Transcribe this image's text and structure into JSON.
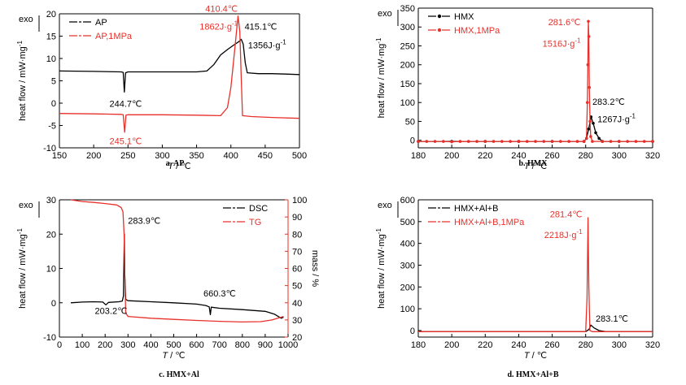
{
  "colors": {
    "black": "#000000",
    "red": "#e8302a"
  },
  "chart_data": [
    {
      "id": "a",
      "type": "line",
      "caption": "a.  AP",
      "exo_label": "exo",
      "xlabel": "T / ℃",
      "ylabel": "heat flow / mW·mg",
      "ylabel_sup": "-1",
      "xlim": [
        150,
        500
      ],
      "ylim": [
        -10,
        20
      ],
      "xticks": [
        150,
        200,
        250,
        300,
        350,
        400,
        450,
        500
      ],
      "yticks": [
        -10,
        -5,
        0,
        5,
        10,
        15,
        20
      ],
      "legend_position": "top-left",
      "series": [
        {
          "name": "AP",
          "color": "#000000",
          "marker": "",
          "points": [
            [
              150,
              7.2
            ],
            [
              200,
              7.1
            ],
            [
              240,
              7.0
            ],
            [
              243,
              6.9
            ],
            [
              244.7,
              2.5
            ],
            [
              246.5,
              6.8
            ],
            [
              250,
              7.0
            ],
            [
              300,
              7.0
            ],
            [
              350,
              7.0
            ],
            [
              365,
              7.2
            ],
            [
              375,
              8.6
            ],
            [
              385,
              10.8
            ],
            [
              395,
              12.0
            ],
            [
              405,
              13.1
            ],
            [
              412,
              13.8
            ],
            [
              415.1,
              14.3
            ],
            [
              418,
              13.2
            ],
            [
              421,
              9.0
            ],
            [
              424,
              6.8
            ],
            [
              440,
              6.6
            ],
            [
              460,
              6.6
            ],
            [
              480,
              6.5
            ],
            [
              500,
              6.4
            ]
          ]
        },
        {
          "name": "AP,1MPa",
          "color": "#e8302a",
          "marker": "",
          "points": [
            [
              150,
              -2.3
            ],
            [
              200,
              -2.4
            ],
            [
              240,
              -2.5
            ],
            [
              243,
              -2.6
            ],
            [
              245.1,
              -6.5
            ],
            [
              247,
              -2.7
            ],
            [
              250,
              -2.6
            ],
            [
              300,
              -2.6
            ],
            [
              350,
              -2.7
            ],
            [
              385,
              -2.8
            ],
            [
              395,
              -1.0
            ],
            [
              400,
              3.5
            ],
            [
              405,
              11.0
            ],
            [
              410.4,
              19.5
            ],
            [
              413,
              16.0
            ],
            [
              415,
              6.0
            ],
            [
              417,
              -2.8
            ],
            [
              430,
              -3.0
            ],
            [
              460,
              -3.2
            ],
            [
              500,
              -3.4
            ]
          ]
        }
      ],
      "annotations": [
        {
          "text": "410.4℃",
          "x": 410,
          "y": 20.5,
          "color": "#e8302a",
          "anchor": "end"
        },
        {
          "text": "1862J·g",
          "sup": "-1",
          "x": 410,
          "y": 16.5,
          "color": "#e8302a",
          "anchor": "end"
        },
        {
          "text": "415.1℃",
          "x": 420,
          "y": 16.5,
          "color": "#000000",
          "anchor": "start"
        },
        {
          "text": "1356J·g",
          "sup": "-1",
          "x": 425,
          "y": 12.3,
          "color": "#000000",
          "anchor": "start"
        },
        {
          "text": "244.7℃",
          "x": 223,
          "y": -0.8,
          "color": "#000000",
          "anchor": "start"
        },
        {
          "text": "245.1℃",
          "x": 223,
          "y": -9.2,
          "color": "#e8302a",
          "anchor": "start"
        }
      ]
    },
    {
      "id": "b",
      "type": "line",
      "caption": "b.  HMX",
      "exo_label": "exo",
      "xlabel": "T / ℃",
      "ylabel": "heat flow / mW·mg",
      "ylabel_sup": "-1",
      "xlim": [
        180,
        320
      ],
      "ylim": [
        -20,
        350
      ],
      "xticks": [
        180,
        200,
        220,
        240,
        260,
        280,
        300,
        320
      ],
      "yticks": [
        0,
        50,
        100,
        150,
        200,
        250,
        300,
        350
      ],
      "legend_position": "top-left",
      "series": [
        {
          "name": "HMX",
          "color": "#000000",
          "marker": "dot",
          "points": [
            [
              180,
              -3
            ],
            [
              200,
              -3
            ],
            [
              220,
              -3
            ],
            [
              240,
              -3
            ],
            [
              260,
              -3
            ],
            [
              279,
              -3
            ],
            [
              280.5,
              5
            ],
            [
              281.8,
              30
            ],
            [
              283.2,
              62
            ],
            [
              284.5,
              45
            ],
            [
              286,
              20
            ],
            [
              288,
              5
            ],
            [
              290,
              -3
            ],
            [
              300,
              -3
            ],
            [
              320,
              -3
            ]
          ]
        },
        {
          "name": "HMX,1MPa",
          "color": "#e8302a",
          "marker": "dot",
          "points": [
            [
              180,
              -3
            ],
            [
              185,
              -3
            ],
            [
              190,
              -3
            ],
            [
              195,
              -3
            ],
            [
              200,
              -4
            ],
            [
              205,
              -3
            ],
            [
              210,
              -3
            ],
            [
              215,
              -3
            ],
            [
              220,
              -3
            ],
            [
              225,
              -3
            ],
            [
              230,
              -3
            ],
            [
              235,
              -3
            ],
            [
              240,
              -3
            ],
            [
              245,
              -3
            ],
            [
              250,
              -3
            ],
            [
              255,
              -3
            ],
            [
              260,
              -3
            ],
            [
              265,
              -3
            ],
            [
              270,
              -3
            ],
            [
              275,
              -3
            ],
            [
              279,
              -3
            ],
            [
              280.5,
              5
            ],
            [
              281,
              100
            ],
            [
              281.3,
              200
            ],
            [
              281.6,
              315
            ],
            [
              281.9,
              275
            ],
            [
              282.2,
              140
            ],
            [
              282.6,
              50
            ],
            [
              283,
              10
            ],
            [
              284,
              -3
            ],
            [
              290,
              -3
            ],
            [
              295,
              -3
            ],
            [
              300,
              -3
            ],
            [
              305,
              -3
            ],
            [
              310,
              -3
            ],
            [
              315,
              -3
            ],
            [
              320,
              -3
            ]
          ]
        }
      ],
      "annotations": [
        {
          "text": "281.6℃",
          "x": 277,
          "y": 305,
          "color": "#e8302a",
          "anchor": "end"
        },
        {
          "text": "1516J·g",
          "sup": "-1",
          "x": 277,
          "y": 248,
          "color": "#e8302a",
          "anchor": "end"
        },
        {
          "text": "283.2℃",
          "x": 284,
          "y": 94,
          "color": "#000000",
          "anchor": "start"
        },
        {
          "text": "1267J·g",
          "sup": "-1",
          "x": 287,
          "y": 48,
          "color": "#000000",
          "anchor": "start"
        }
      ]
    },
    {
      "id": "c",
      "type": "line",
      "caption": "c.  HMX+Al",
      "exo_label": "exo",
      "xlabel": "T / ℃",
      "ylabel": "heat flow / mW·mg",
      "ylabel_sup": "-1",
      "y2label": "mass / %",
      "xlim": [
        0,
        1000
      ],
      "ylim": [
        -10,
        30
      ],
      "y2lim": [
        20,
        100
      ],
      "xticks": [
        0,
        100,
        200,
        300,
        400,
        500,
        600,
        700,
        800,
        900,
        1000
      ],
      "yticks": [
        -10,
        0,
        10,
        20,
        30
      ],
      "y2ticks": [
        20,
        30,
        40,
        50,
        60,
        70,
        80,
        90,
        100
      ],
      "legend_position": "top-right",
      "series": [
        {
          "name": "DSC",
          "color": "#000000",
          "marker": "",
          "axis": "left",
          "points": [
            [
              50,
              0
            ],
            [
              100,
              0.2
            ],
            [
              150,
              0.3
            ],
            [
              190,
              0.2
            ],
            [
              203.2,
              -0.6
            ],
            [
              215,
              0.1
            ],
            [
              260,
              0.3
            ],
            [
              275,
              0.5
            ],
            [
              280,
              2
            ],
            [
              283.9,
              20
            ],
            [
              286,
              8
            ],
            [
              290,
              1
            ],
            [
              300,
              0.6
            ],
            [
              400,
              0.3
            ],
            [
              500,
              0
            ],
            [
              600,
              -0.4
            ],
            [
              640,
              -0.8
            ],
            [
              655,
              -1.2
            ],
            [
              660.3,
              -3.5
            ],
            [
              664,
              -1.3
            ],
            [
              700,
              -1.6
            ],
            [
              800,
              -2
            ],
            [
              900,
              -2.5
            ],
            [
              940,
              -3.3
            ],
            [
              970,
              -4.5
            ],
            [
              980,
              -4.2
            ]
          ]
        },
        {
          "name": "TG",
          "color": "#e8302a",
          "marker": "",
          "axis": "right",
          "points": [
            [
              50,
              100
            ],
            [
              100,
              99
            ],
            [
              150,
              98.5
            ],
            [
              200,
              97.8
            ],
            [
              250,
              97
            ],
            [
              270,
              95.5
            ],
            [
              278,
              93
            ],
            [
              283,
              80
            ],
            [
              286,
              55
            ],
            [
              290,
              34
            ],
            [
              300,
              32
            ],
            [
              400,
              31
            ],
            [
              500,
              30.3
            ],
            [
              600,
              29.7
            ],
            [
              700,
              29.2
            ],
            [
              800,
              28.8
            ],
            [
              880,
              29
            ],
            [
              930,
              30
            ],
            [
              980,
              32
            ]
          ]
        }
      ],
      "annotations": [
        {
          "text": "283.9℃",
          "x": 300,
          "y": 23,
          "color": "#000000",
          "anchor": "start"
        },
        {
          "text": "660.3℃",
          "x": 630,
          "y": 1.8,
          "color": "#000000",
          "anchor": "start"
        },
        {
          "text": "203.2℃",
          "x": 155,
          "y": -3.2,
          "color": "#000000",
          "anchor": "start"
        }
      ]
    },
    {
      "id": "d",
      "type": "line",
      "caption": "d.  HMX+Al+B",
      "exo_label": "exo",
      "xlabel": "T / ℃",
      "ylabel": "heat flow / mW·mg",
      "ylabel_sup": "-1",
      "xlim": [
        180,
        320
      ],
      "ylim": [
        -30,
        600
      ],
      "xticks": [
        180,
        200,
        220,
        240,
        260,
        280,
        300,
        320
      ],
      "yticks": [
        0,
        100,
        200,
        300,
        400,
        500,
        600
      ],
      "legend_position": "top-left",
      "series": [
        {
          "name": "HMX+Al+B",
          "color": "#000000",
          "marker": "",
          "points": [
            [
              180,
              -5
            ],
            [
              200,
              -5
            ],
            [
              240,
              -5
            ],
            [
              270,
              -5
            ],
            [
              280,
              -5
            ],
            [
              282,
              5
            ],
            [
              283.1,
              25
            ],
            [
              285,
              12
            ],
            [
              288,
              0
            ],
            [
              292,
              -5
            ],
            [
              320,
              -5
            ]
          ]
        },
        {
          "name": "HMX+Al+B,1MPa",
          "color": "#e8302a",
          "marker": "",
          "points": [
            [
              180,
              -5
            ],
            [
              200,
              -5
            ],
            [
              240,
              -5
            ],
            [
              270,
              -5
            ],
            [
              280,
              -5
            ],
            [
              280.8,
              150
            ],
            [
              281.4,
              518
            ],
            [
              281.9,
              200
            ],
            [
              282.5,
              0
            ],
            [
              284,
              -5
            ],
            [
              320,
              -5
            ]
          ]
        }
      ],
      "annotations": [
        {
          "text": "281.4℃",
          "x": 278,
          "y": 520,
          "color": "#e8302a",
          "anchor": "end"
        },
        {
          "text": "2218J·g",
          "sup": "-1",
          "x": 278,
          "y": 425,
          "color": "#e8302a",
          "anchor": "end"
        },
        {
          "text": "283.1℃",
          "x": 286,
          "y": 40,
          "color": "#000000",
          "anchor": "start"
        }
      ]
    }
  ]
}
